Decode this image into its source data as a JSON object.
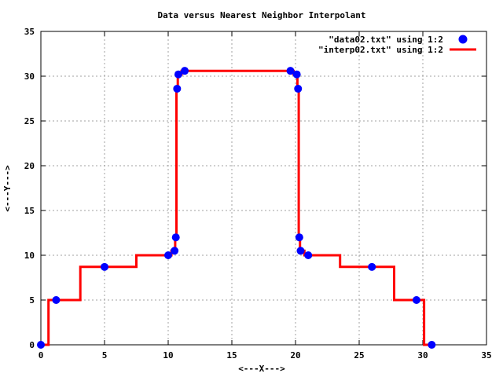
{
  "chart_data": {
    "type": "scatter",
    "title": "Data versus Nearest Neighbor Interpolant",
    "xlabel": "<---X--->",
    "ylabel": "<---Y--->",
    "xlim": [
      0,
      35
    ],
    "ylim": [
      0,
      35
    ],
    "xticks": [
      "0",
      "5",
      "10",
      "15",
      "20",
      "25",
      "30",
      "35"
    ],
    "yticks": [
      "0",
      "5",
      "10",
      "15",
      "20",
      "25",
      "30",
      "35"
    ],
    "grid": true,
    "legend_position": "top-right",
    "series": [
      {
        "name": "\"data02.txt\" using 1:2",
        "style": "points",
        "color": "#0000ff",
        "x": [
          0.0,
          1.2,
          5.0,
          10.0,
          10.5,
          10.6,
          10.7,
          10.8,
          11.3,
          19.6,
          20.1,
          20.2,
          20.3,
          20.4,
          21.0,
          26.0,
          29.5,
          30.7
        ],
        "y": [
          0.0,
          5.0,
          8.7,
          10.0,
          10.5,
          12.0,
          28.6,
          30.2,
          30.6,
          30.6,
          30.2,
          28.6,
          12.0,
          10.5,
          10.0,
          8.7,
          5.0,
          0.0
        ]
      },
      {
        "name": "\"interp02.txt\" using 1:2",
        "style": "line",
        "color": "#ff0000",
        "x": [
          0.0,
          0.6,
          0.6,
          3.1,
          3.1,
          7.5,
          7.5,
          10.25,
          10.25,
          10.55,
          10.55,
          10.65,
          10.65,
          10.75,
          10.75,
          11.05,
          11.05,
          15.45,
          15.45,
          19.85,
          19.85,
          20.15,
          20.15,
          20.25,
          20.25,
          20.35,
          20.35,
          20.7,
          20.7,
          23.5,
          23.5,
          27.75,
          27.75,
          30.1,
          30.1,
          30.7
        ],
        "y": [
          0.0,
          0.0,
          5.0,
          5.0,
          8.7,
          8.7,
          10.0,
          10.0,
          10.5,
          10.5,
          12.0,
          12.0,
          28.6,
          28.6,
          30.2,
          30.2,
          30.6,
          30.6,
          30.6,
          30.6,
          30.2,
          30.2,
          28.6,
          28.6,
          12.0,
          12.0,
          10.5,
          10.5,
          10.0,
          10.0,
          8.7,
          8.7,
          5.0,
          5.0,
          0.0,
          0.0
        ]
      }
    ]
  }
}
